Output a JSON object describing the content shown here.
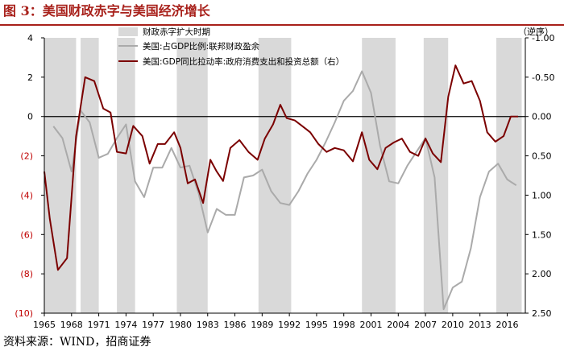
{
  "title": "图 3：美国财政赤字与美国经济增长",
  "source": "资料来源：WIND，招商证券",
  "colors": {
    "title": "#a8201a",
    "recession_band": "#d9d9d9",
    "deficit_line": "#aaaaaa",
    "gdp_line": "#7b0000",
    "axis_red": "#c00000"
  },
  "chart_data": {
    "type": "line",
    "x_range": [
      1965,
      2018
    ],
    "x_ticks": [
      "1965",
      "1968",
      "1971",
      "1974",
      "1977",
      "1980",
      "1983",
      "1986",
      "1989",
      "1992",
      "1995",
      "1998",
      "2001",
      "2004",
      "2007",
      "2010",
      "2013",
      "2016"
    ],
    "y_left": {
      "range": [
        -10,
        4
      ],
      "ticks": [
        4,
        2,
        0,
        -2,
        -4,
        -6,
        -8,
        -10
      ],
      "tick_labels": [
        "4",
        "2",
        "0",
        "(2)",
        "(4)",
        "(6)",
        "(8)",
        "(10)"
      ]
    },
    "y_right": {
      "label": "（逆序）",
      "range": [
        -1.0,
        2.5
      ],
      "inverted": true,
      "ticks": [
        -1.0,
        -0.5,
        0.0,
        0.5,
        1.0,
        1.5,
        2.0,
        2.5
      ],
      "tick_labels": [
        "-1.00",
        "-0.50",
        "0.00",
        "0.50",
        "1.00",
        "1.50",
        "2.00",
        "2.50"
      ]
    },
    "legend": [
      {
        "key": "band",
        "label": "财政赤字扩大时期"
      },
      {
        "key": "deficit",
        "label": "美国:占GDP比例:联邦财政盈余"
      },
      {
        "key": "gdp",
        "label": "美国:GDP同比拉动率:政府消费支出和投资总额（右）"
      }
    ],
    "deficit_expansion_periods": [
      [
        1965.0,
        1968.5
      ],
      [
        1969.0,
        1971.0
      ],
      [
        1973.0,
        1975.0
      ],
      [
        1979.6,
        1983.0
      ],
      [
        1988.6,
        1992.2
      ],
      [
        2000.0,
        2003.7
      ],
      [
        2006.8,
        2009.5
      ],
      [
        2014.8,
        2017.6
      ]
    ],
    "series": [
      {
        "name": "美国:占GDP比例:联邦财政盈余",
        "axis": "left",
        "x": [
          1966.0,
          1967.0,
          1968.0,
          1969.0,
          1970.0,
          1971.0,
          1972.0,
          1973.0,
          1974.0,
          1975.0,
          1976.0,
          1977.0,
          1978.0,
          1979.0,
          1980.0,
          1981.0,
          1982.0,
          1983.0,
          1984.0,
          1985.0,
          1986.0,
          1987.0,
          1988.0,
          1989.0,
          1990.0,
          1991.0,
          1992.0,
          1993.0,
          1994.0,
          1995.0,
          1996.0,
          1997.0,
          1998.0,
          1999.0,
          2000.0,
          2001.0,
          2002.0,
          2003.0,
          2004.0,
          2005.0,
          2006.0,
          2007.0,
          2008.0,
          2009.0,
          2010.0,
          2011.0,
          2012.0,
          2013.0,
          2014.0,
          2015.0,
          2016.0,
          2017.0
        ],
        "values": [
          -0.5,
          -1.1,
          -2.8,
          0.3,
          -0.3,
          -2.1,
          -1.9,
          -1.1,
          -0.4,
          -3.3,
          -4.1,
          -2.6,
          -2.6,
          -1.6,
          -2.6,
          -2.5,
          -3.9,
          -5.9,
          -4.7,
          -5.0,
          -5.0,
          -3.1,
          -3.0,
          -2.7,
          -3.8,
          -4.4,
          -4.5,
          -3.8,
          -2.9,
          -2.2,
          -1.3,
          -0.3,
          0.8,
          1.3,
          2.3,
          1.2,
          -1.5,
          -3.3,
          -3.4,
          -2.5,
          -1.8,
          -1.1,
          -3.1,
          -9.8,
          -8.7,
          -8.4,
          -6.7,
          -4.1,
          -2.8,
          -2.4,
          -3.2,
          -3.5
        ]
      },
      {
        "name": "美国:GDP同比拉动率:政府消费支出和投资总额（右）",
        "axis": "right",
        "x": [
          1965.0,
          1965.6,
          1966.5,
          1967.5,
          1968.5,
          1969.5,
          1970.5,
          1971.5,
          1972.3,
          1973.0,
          1974.0,
          1974.8,
          1975.8,
          1976.6,
          1977.5,
          1978.3,
          1979.3,
          1980.0,
          1980.8,
          1981.6,
          1982.5,
          1983.3,
          1984.0,
          1984.7,
          1985.5,
          1986.5,
          1987.5,
          1988.5,
          1989.3,
          1990.2,
          1991.0,
          1991.7,
          1992.6,
          1993.4,
          1994.3,
          1995.2,
          1996.1,
          1997.0,
          1998.0,
          1999.0,
          2000.0,
          2000.8,
          2001.7,
          2002.6,
          2003.5,
          2004.4,
          2005.3,
          2006.2,
          2007.0,
          2007.8,
          2008.7,
          2009.5,
          2010.3,
          2011.2,
          2012.1,
          2013.0,
          2013.8,
          2014.7,
          2015.6,
          2016.4,
          2017.2
        ],
        "values": [
          0.7,
          1.3,
          1.95,
          1.8,
          0.25,
          -0.5,
          -0.45,
          -0.1,
          -0.05,
          0.45,
          0.47,
          0.12,
          0.25,
          0.6,
          0.35,
          0.35,
          0.2,
          0.4,
          0.85,
          0.8,
          1.1,
          0.55,
          0.7,
          0.82,
          0.4,
          0.3,
          0.45,
          0.55,
          0.28,
          0.1,
          -0.15,
          0.02,
          0.05,
          0.12,
          0.2,
          0.35,
          0.45,
          0.4,
          0.43,
          0.57,
          0.2,
          0.55,
          0.67,
          0.4,
          0.33,
          0.28,
          0.45,
          0.5,
          0.28,
          0.47,
          0.58,
          -0.25,
          -0.65,
          -0.42,
          -0.45,
          -0.2,
          0.2,
          0.32,
          0.25,
          0.0,
          0.0
        ]
      }
    ]
  }
}
